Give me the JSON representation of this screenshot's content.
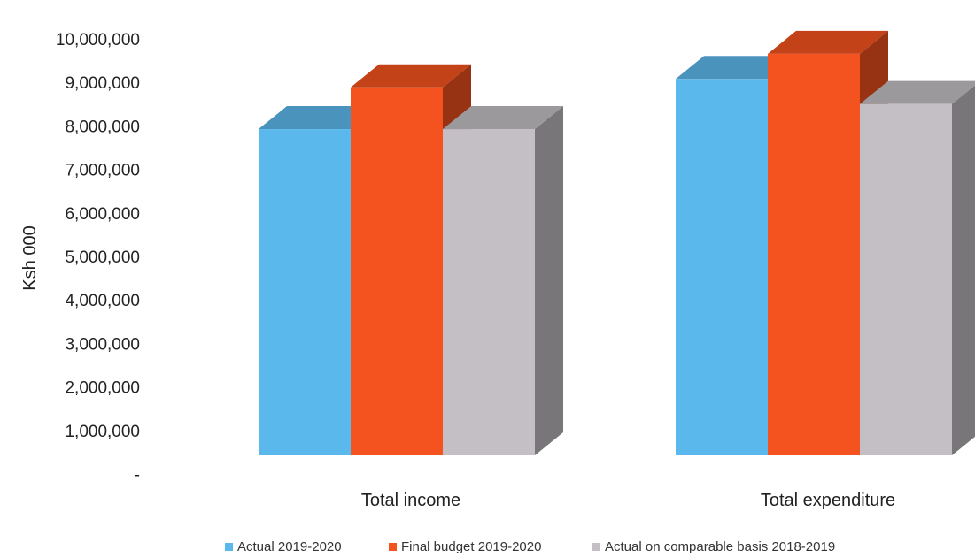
{
  "chart_data": {
    "type": "bar",
    "title": "",
    "xlabel": "",
    "ylabel": "Ksh 000",
    "ylim": [
      0,
      10000000
    ],
    "y_ticks": [
      "-",
      "1,000,000",
      "2,000,000",
      "3,000,000",
      "4,000,000",
      "5,000,000",
      "6,000,000",
      "7,000,000",
      "8,000,000",
      "9,000,000",
      "10,000,000"
    ],
    "y_tick_values": [
      0,
      1000000,
      2000000,
      3000000,
      4000000,
      5000000,
      6000000,
      7000000,
      8000000,
      9000000,
      10000000
    ],
    "categories": [
      "Total income",
      "Total expenditure"
    ],
    "series": [
      {
        "name": "Actual 2019-2020",
        "values": [
          7800000,
          9000000
        ],
        "color": "#5bb8ec"
      },
      {
        "name": "Final budget 2019-2020",
        "values": [
          8800000,
          9600000
        ],
        "color": "#f4521e"
      },
      {
        "name": "Actual on comparable basis 2018-2019",
        "values": [
          7800000,
          8400000
        ],
        "color": "#c3bfc4"
      }
    ],
    "grid": false,
    "legend_position": "bottom",
    "style": "3d-column"
  }
}
